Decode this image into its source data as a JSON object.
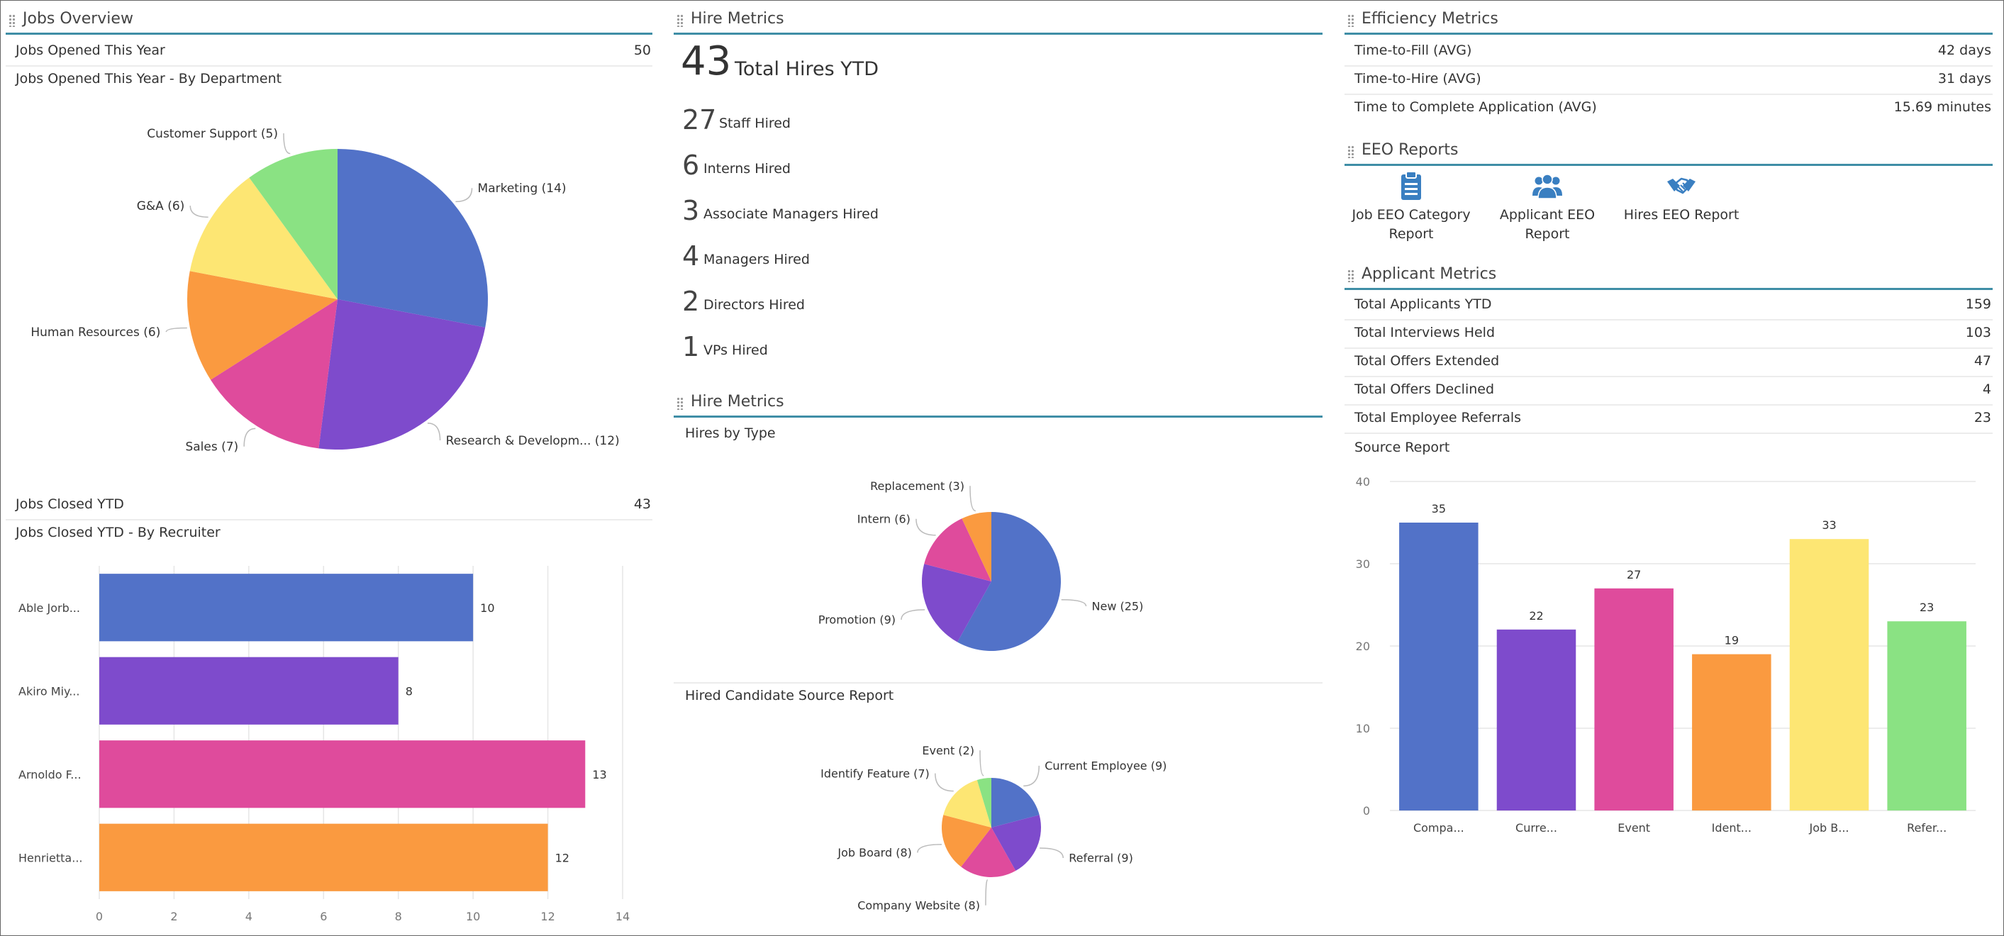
{
  "jobs_overview": {
    "title": "Jobs Overview",
    "opened_label": "Jobs Opened This Year",
    "opened_value": "50",
    "by_dept_title": "Jobs Opened This Year - By Department",
    "closed_label": "Jobs Closed YTD",
    "closed_value": "43",
    "by_recruiter_title": "Jobs Closed YTD - By Recruiter"
  },
  "hire_metrics": {
    "title": "Hire Metrics",
    "total_number": "43",
    "total_label": "Total Hires YTD",
    "items": [
      {
        "number": "27",
        "label": "Staff Hired"
      },
      {
        "number": "6",
        "label": "Interns Hired"
      },
      {
        "number": "3",
        "label": "Associate Managers Hired"
      },
      {
        "number": "4",
        "label": "Managers Hired"
      },
      {
        "number": "2",
        "label": "Directors Hired"
      },
      {
        "number": "1",
        "label": "VPs Hired"
      }
    ]
  },
  "hire_metrics_2": {
    "title": "Hire Metrics",
    "by_type_title": "Hires by Type",
    "source_title": "Hired Candidate Source Report"
  },
  "efficiency": {
    "title": "Efficiency Metrics",
    "rows": [
      {
        "label": "Time-to-Fill (AVG)",
        "value": "42 days"
      },
      {
        "label": "Time-to-Hire (AVG)",
        "value": "31 days"
      },
      {
        "label": "Time to Complete Application (AVG)",
        "value": "15.69 minutes"
      }
    ]
  },
  "eeo": {
    "title": "EEO Reports",
    "items": [
      {
        "line1": "Job EEO Category",
        "line2": "Report",
        "icon": "clipboard-icon"
      },
      {
        "line1": "Applicant EEO",
        "line2": "Report",
        "icon": "users-icon"
      },
      {
        "line1": "Hires EEO Report",
        "line2": "",
        "icon": "handshake-icon"
      }
    ]
  },
  "applicant": {
    "title": "Applicant Metrics",
    "rows": [
      {
        "label": "Total Applicants YTD",
        "value": "159"
      },
      {
        "label": "Total Interviews Held",
        "value": "103"
      },
      {
        "label": "Total Offers Extended",
        "value": "47"
      },
      {
        "label": "Total Offers Declined",
        "value": "4"
      },
      {
        "label": "Total Employee Referrals",
        "value": "23"
      }
    ],
    "source_title": "Source Report"
  },
  "colors": {
    "blue": "#5272c8",
    "purple": "#7e4bcc",
    "pink": "#df4b9c",
    "orange": "#fa9a40",
    "yellow": "#fde673",
    "green": "#8ae283",
    "accent": "#3f8ea6"
  },
  "chart_data": [
    {
      "type": "pie",
      "categories": [
        "Marketing",
        "Research & Developm...",
        "Sales",
        "Human Resources",
        "G&A",
        "Customer Support"
      ],
      "values": [
        14,
        12,
        7,
        6,
        6,
        5
      ],
      "labels": [
        "Marketing (14)",
        "Research & Developm... (12)",
        "Sales (7)",
        "Human Resources (6)",
        "G&A (6)",
        "Customer Support (5)"
      ]
    },
    {
      "type": "bar",
      "orientation": "horizontal",
      "categories": [
        "Able Jorb...",
        "Akiro Miy...",
        "Arnoldo F...",
        "Henrietta..."
      ],
      "values": [
        10,
        8,
        13,
        12
      ],
      "xlim": [
        0,
        14
      ],
      "ticks": [
        "0",
        "2",
        "4",
        "6",
        "8",
        "10",
        "12",
        "14"
      ],
      "grid": true
    },
    {
      "type": "pie",
      "categories": [
        "New",
        "Promotion",
        "Intern",
        "Replacement"
      ],
      "values": [
        25,
        9,
        6,
        3
      ],
      "labels": [
        "New (25)",
        "Promotion (9)",
        "Intern (6)",
        "Replacement (3)"
      ]
    },
    {
      "type": "pie",
      "categories": [
        "Current Employee",
        "Referral",
        "Company Website",
        "Job Board",
        "Identify Feature",
        "Event"
      ],
      "values": [
        9,
        9,
        8,
        8,
        7,
        2
      ],
      "labels": [
        "Current Employee (9)",
        "Referral (9)",
        "Company Website (8)",
        "Job Board (8)",
        "Identify Feature (7)",
        "Event (2)"
      ]
    },
    {
      "type": "bar",
      "categories": [
        "Compa...",
        "Curre...",
        "Event",
        "Ident...",
        "Job B...",
        "Refer..."
      ],
      "values": [
        35,
        22,
        27,
        19,
        33,
        23
      ],
      "ylim": [
        0,
        40
      ],
      "ticks": [
        "0",
        "10",
        "20",
        "30",
        "40"
      ],
      "grid": true
    }
  ]
}
